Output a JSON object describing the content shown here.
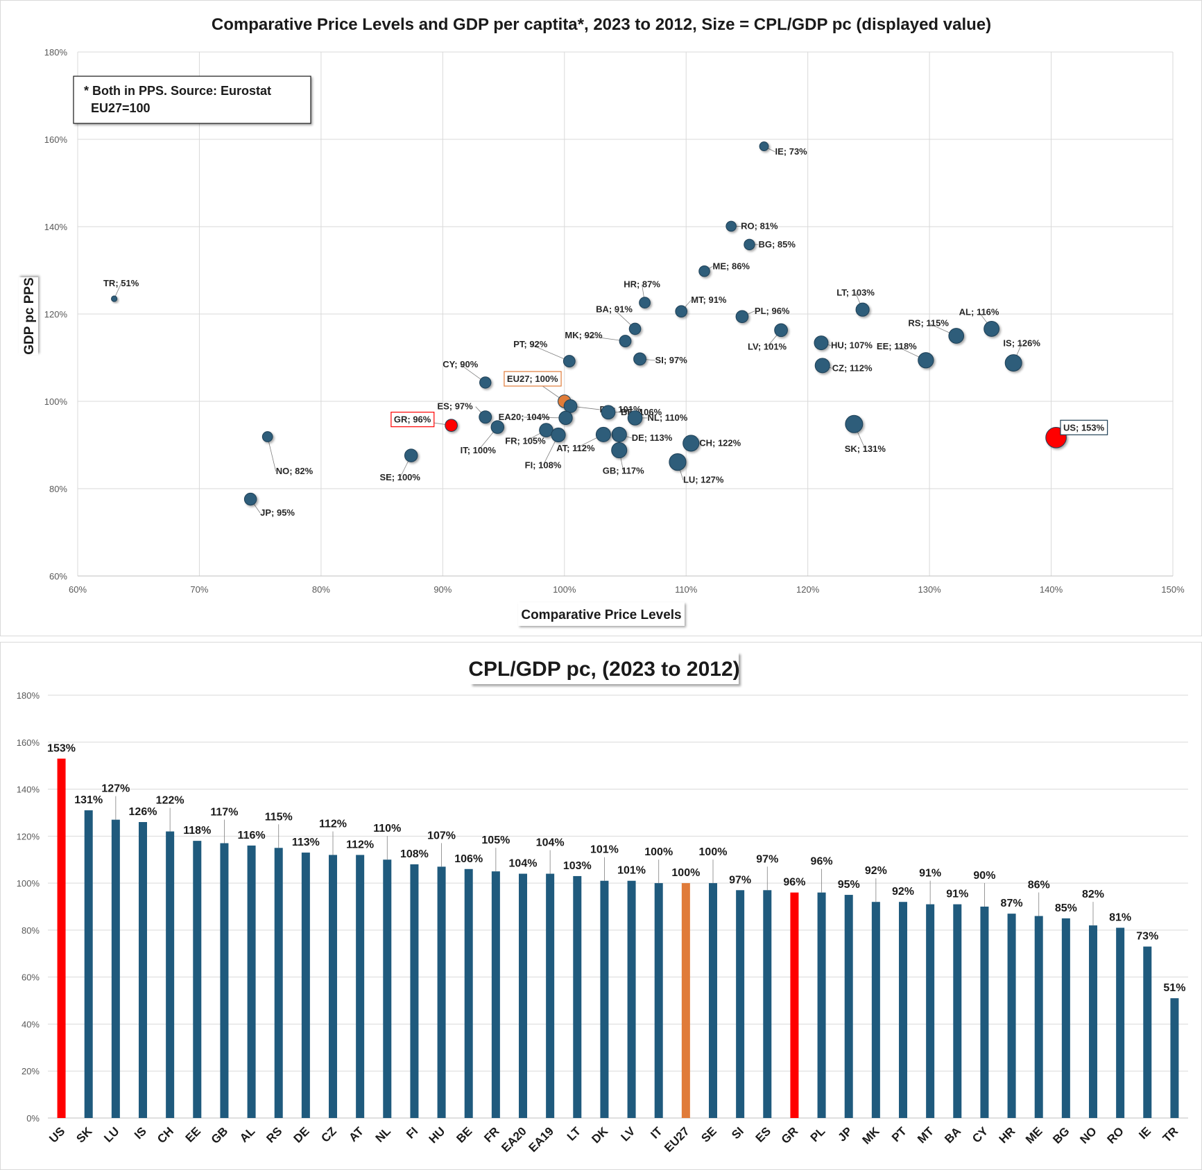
{
  "chart_data": [
    {
      "type": "scatter",
      "title": "Comparative  Price Levels and GDP per captita*,  2023 to 2012, Size = CPL/GDP  pc (displayed value)",
      "xlabel": "Comparative Price Levels",
      "ylabel": "GDP pc PPS",
      "xlim": [
        60,
        150
      ],
      "ylim": [
        60,
        180
      ],
      "x_ticks": [
        "60%",
        "70%",
        "80%",
        "90%",
        "100%",
        "110%",
        "120%",
        "130%",
        "140%",
        "150%"
      ],
      "y_ticks": [
        "60%",
        "80%",
        "100%",
        "120%",
        "140%",
        "160%",
        "180%"
      ],
      "grid": true,
      "note_lines": [
        "* Both in PPS. Source: Eurostat",
        "EU27=100"
      ],
      "colors": {
        "default": "#2e5d7a",
        "EU27": "#e07b39",
        "GR": "#ff0000",
        "US": "#ff0000"
      },
      "points": [
        {
          "code": "IE",
          "label": "IE; 73%",
          "x": 116.4,
          "y": 158.4,
          "value": 73
        },
        {
          "code": "RO",
          "label": "RO; 81%",
          "x": 113.7,
          "y": 140.1,
          "value": 81
        },
        {
          "code": "BG",
          "label": "BG; 85%",
          "x": 115.2,
          "y": 135.9,
          "value": 85
        },
        {
          "code": "ME",
          "label": "ME; 86%",
          "x": 111.5,
          "y": 129.8,
          "value": 86
        },
        {
          "code": "HR",
          "label": "HR; 87%",
          "x": 106.6,
          "y": 122.6,
          "value": 87
        },
        {
          "code": "TR",
          "label": "TR; 51%",
          "x": 63.0,
          "y": 123.5,
          "value": 51
        },
        {
          "code": "LT",
          "label": "LT; 103%",
          "x": 124.5,
          "y": 121.0,
          "value": 103
        },
        {
          "code": "MT",
          "label": "MT; 91%",
          "x": 109.6,
          "y": 120.6,
          "value": 91
        },
        {
          "code": "PL",
          "label": "PL; 96%",
          "x": 114.6,
          "y": 119.4,
          "value": 96
        },
        {
          "code": "BA",
          "label": "BA; 91%",
          "x": 105.8,
          "y": 116.6,
          "value": 91
        },
        {
          "code": "AL",
          "label": "AL; 116%",
          "x": 135.1,
          "y": 116.6,
          "value": 116
        },
        {
          "code": "LV",
          "label": "LV; 101%",
          "x": 117.8,
          "y": 116.3,
          "value": 101
        },
        {
          "code": "RS",
          "label": "RS; 115%",
          "x": 132.2,
          "y": 115.0,
          "value": 115
        },
        {
          "code": "MK",
          "label": "MK; 92%",
          "x": 105.0,
          "y": 113.8,
          "value": 92
        },
        {
          "code": "HU",
          "label": "HU; 107%",
          "x": 121.1,
          "y": 113.4,
          "value": 107
        },
        {
          "code": "PT",
          "label": "PT; 92%",
          "x": 100.4,
          "y": 109.2,
          "value": 92
        },
        {
          "code": "SI",
          "label": "SI; 97%",
          "x": 106.2,
          "y": 109.7,
          "value": 97
        },
        {
          "code": "EE",
          "label": "EE; 118%",
          "x": 129.7,
          "y": 109.4,
          "value": 118
        },
        {
          "code": "IS",
          "label": "IS; 126%",
          "x": 136.9,
          "y": 108.8,
          "value": 126
        },
        {
          "code": "CZ",
          "label": "CZ; 112%",
          "x": 121.2,
          "y": 108.2,
          "value": 112
        },
        {
          "code": "CY",
          "label": "CY; 90%",
          "x": 93.5,
          "y": 104.3,
          "value": 90
        },
        {
          "code": "EU27",
          "label": "EU27; 100%",
          "x": 100.0,
          "y": 100.0,
          "value": 100
        },
        {
          "code": "DK",
          "label": "DK; 101%",
          "x": 100.5,
          "y": 98.9,
          "value": 101
        },
        {
          "code": "BE",
          "label": "BE; 106%",
          "x": 103.6,
          "y": 97.5,
          "value": 106
        },
        {
          "code": "EA20",
          "label": "EA20; 104%",
          "x": 100.1,
          "y": 96.2,
          "value": 104
        },
        {
          "code": "ES",
          "label": "ES; 97%",
          "x": 93.5,
          "y": 96.4,
          "value": 97
        },
        {
          "code": "NL",
          "label": "NL; 110%",
          "x": 105.8,
          "y": 96.2,
          "value": 110
        },
        {
          "code": "GR",
          "label": "GR; 96%",
          "x": 90.7,
          "y": 94.5,
          "value": 96
        },
        {
          "code": "SK",
          "label": "SK; 131%",
          "x": 123.8,
          "y": 94.8,
          "value": 131
        },
        {
          "code": "IT",
          "label": "IT; 100%",
          "x": 94.5,
          "y": 94.1,
          "value": 100
        },
        {
          "code": "FR",
          "label": "FR; 105%",
          "x": 98.5,
          "y": 93.4,
          "value": 105
        },
        {
          "code": "US",
          "label": "US; 153%",
          "x": 140.4,
          "y": 91.7,
          "value": 153
        },
        {
          "code": "DE",
          "label": "DE; 113%",
          "x": 104.5,
          "y": 92.4,
          "value": 113
        },
        {
          "code": "AT",
          "label": "AT; 112%",
          "x": 103.2,
          "y": 92.4,
          "value": 112
        },
        {
          "code": "FI",
          "label": "FI; 108%",
          "x": 99.5,
          "y": 92.3,
          "value": 108
        },
        {
          "code": "NO",
          "label": "NO; 82%",
          "x": 75.6,
          "y": 91.9,
          "value": 82
        },
        {
          "code": "CH",
          "label": "CH; 122%",
          "x": 110.4,
          "y": 90.4,
          "value": 122
        },
        {
          "code": "GB",
          "label": "GB; 117%",
          "x": 104.5,
          "y": 88.8,
          "value": 117
        },
        {
          "code": "SE",
          "label": "SE; 100%",
          "x": 87.4,
          "y": 87.6,
          "value": 100
        },
        {
          "code": "LU",
          "label": "LU; 127%",
          "x": 109.3,
          "y": 86.1,
          "value": 127
        },
        {
          "code": "JP",
          "label": "JP; 95%",
          "x": 74.2,
          "y": 77.6,
          "value": 95
        }
      ]
    },
    {
      "type": "bar",
      "title": "CPL/GDP pc, (2023 to 2012)",
      "ylim": [
        0,
        180
      ],
      "y_ticks": [
        "0%",
        "20%",
        "40%",
        "60%",
        "80%",
        "100%",
        "120%",
        "140%",
        "160%",
        "180%"
      ],
      "grid": true,
      "colors": {
        "default": "#1f5a7d",
        "EU27": "#e07b39",
        "GR": "#ff0000",
        "US": "#ff0000"
      },
      "categories": [
        "US",
        "SK",
        "LU",
        "IS",
        "CH",
        "EE",
        "GB",
        "AL",
        "RS",
        "DE",
        "CZ",
        "AT",
        "NL",
        "FI",
        "HU",
        "BE",
        "FR",
        "EA20",
        "EA19",
        "LT",
        "DK",
        "LV",
        "IT",
        "EU27",
        "SE",
        "SI",
        "ES",
        "GR",
        "PL",
        "JP",
        "MK",
        "PT",
        "MT",
        "BA",
        "CY",
        "HR",
        "ME",
        "BG",
        "NO",
        "RO",
        "IE",
        "TR"
      ],
      "values": [
        153,
        131,
        127,
        126,
        122,
        118,
        117,
        116,
        115,
        113,
        112,
        112,
        110,
        108,
        107,
        106,
        105,
        104,
        104,
        103,
        101,
        101,
        100,
        100,
        100,
        97,
        97,
        96,
        96,
        95,
        92,
        92,
        91,
        91,
        90,
        87,
        86,
        85,
        82,
        81,
        73,
        51
      ],
      "value_labels": [
        "153%",
        "131%",
        "127%",
        "126%",
        "122%",
        "118%",
        "117%",
        "116%",
        "115%",
        "113%",
        "112%",
        "112%",
        "110%",
        "108%",
        "107%",
        "106%",
        "105%",
        "104%",
        "104%",
        "103%",
        "101%",
        "101%",
        "100%",
        "100%",
        "100%",
        "97%",
        "97%",
        "96%",
        "96%",
        "95%",
        "92%",
        "92%",
        "91%",
        "91%",
        "90%",
        "87%",
        "86%",
        "85%",
        "82%",
        "81%",
        "73%",
        "51%"
      ]
    }
  ]
}
